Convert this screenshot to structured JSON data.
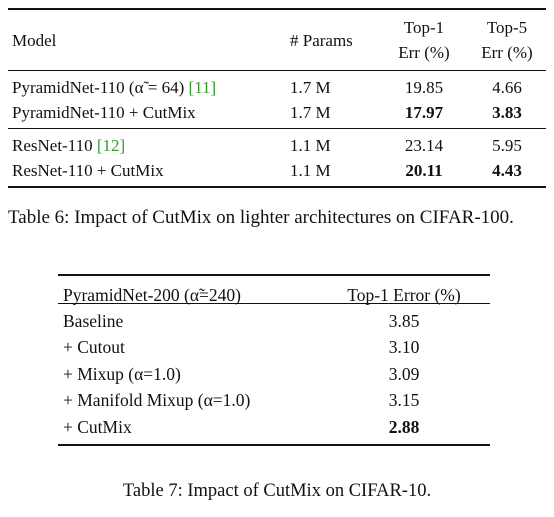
{
  "table6": {
    "headers": {
      "model": "Model",
      "params": "# Params",
      "top1_line1": "Top-1",
      "top1_line2": "Err (%)",
      "top5_line1": "Top-5",
      "top5_line2": "Err (%)"
    },
    "groups": [
      {
        "rows": [
          {
            "model_prefix": "PyramidNet-110 (α̃ = 64) ",
            "cite": "[11]",
            "params": "1.7 M",
            "top1": "19.85",
            "top5": "4.66",
            "bold": false
          },
          {
            "model_prefix": "PyramidNet-110 + CutMix",
            "cite": "",
            "params": "1.7 M",
            "top1": "17.97",
            "top5": "3.83",
            "bold": true
          }
        ]
      },
      {
        "rows": [
          {
            "model_prefix": "ResNet-110 ",
            "cite": "[12]",
            "params": "1.1 M",
            "top1": "23.14",
            "top5": "5.95",
            "bold": false
          },
          {
            "model_prefix": "ResNet-110 + CutMix",
            "cite": "",
            "params": "1.1 M",
            "top1": "20.11",
            "top5": "4.43",
            "bold": true
          }
        ]
      }
    ],
    "caption": "Table 6: Impact of CutMix on lighter architectures on CIFAR-100."
  },
  "table7": {
    "headers": {
      "method": "PyramidNet-200 (α̃=240)",
      "err": "Top-1 Error (%)"
    },
    "rows": [
      {
        "method": "Baseline",
        "err": "3.85",
        "bold": false
      },
      {
        "method": "+ Cutout",
        "err": "3.10",
        "bold": false
      },
      {
        "method": "+ Mixup (α=1.0)",
        "err": "3.09",
        "bold": false
      },
      {
        "method": "+ Manifold Mixup (α=1.0)",
        "err": "3.15",
        "bold": false
      },
      {
        "method": "+ CutMix",
        "err": "2.88",
        "bold": true
      }
    ],
    "caption": "Table 7: Impact of CutMix on CIFAR-10."
  }
}
